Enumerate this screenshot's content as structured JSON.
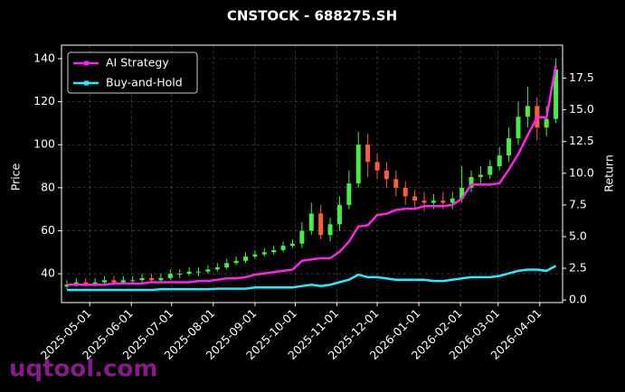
{
  "chart_data": {
    "type": "candlestick",
    "title": "CNSTOCK - 688275.SH",
    "ylabel": "Price",
    "y2label": "Return",
    "watermark": "uqtool.com",
    "grid": true,
    "legend": "upper left",
    "up_color": "#44ee44",
    "down_color": "#ff5a3c",
    "x": [
      "2025-04-14",
      "2025-04-21",
      "2025-04-28",
      "2025-05-05",
      "2025-05-12",
      "2025-05-19",
      "2025-05-26",
      "2025-06-02",
      "2025-06-09",
      "2025-06-16",
      "2025-06-23",
      "2025-06-30",
      "2025-07-07",
      "2025-07-14",
      "2025-07-21",
      "2025-07-28",
      "2025-08-04",
      "2025-08-11",
      "2025-08-18",
      "2025-08-25",
      "2025-09-01",
      "2025-09-08",
      "2025-09-15",
      "2025-09-22",
      "2025-09-29",
      "2025-10-06",
      "2025-10-13",
      "2025-10-20",
      "2025-10-27",
      "2025-11-03",
      "2025-11-10",
      "2025-11-17",
      "2025-11-24",
      "2025-12-01",
      "2025-12-08",
      "2025-12-15",
      "2025-12-22",
      "2025-12-29",
      "2026-01-05",
      "2026-01-12",
      "2026-01-19",
      "2026-01-26",
      "2026-02-02",
      "2026-02-09",
      "2026-02-16",
      "2026-02-23",
      "2026-03-02",
      "2026-03-09",
      "2026-03-16",
      "2026-03-23",
      "2026-03-30",
      "2026-04-06",
      "2026-04-13"
    ],
    "open": [
      34,
      35,
      36,
      35,
      36,
      37,
      36,
      37,
      37,
      38,
      37,
      38,
      40,
      40,
      41,
      41,
      42,
      43,
      45,
      46,
      48,
      49,
      50,
      51,
      53,
      54,
      60,
      68,
      58,
      63,
      72,
      82,
      100,
      92,
      88,
      84,
      80,
      76,
      74,
      73,
      74,
      73,
      75,
      80,
      85,
      86,
      90,
      95,
      103,
      113,
      118,
      108,
      112
    ],
    "high": [
      37,
      38,
      38,
      38,
      39,
      39,
      39,
      39,
      40,
      40,
      40,
      42,
      42,
      43,
      43,
      44,
      45,
      47,
      48,
      50,
      51,
      52,
      53,
      55,
      56,
      64,
      73,
      72,
      66,
      76,
      88,
      106,
      105,
      96,
      92,
      88,
      83,
      79,
      78,
      77,
      78,
      78,
      90,
      88,
      90,
      93,
      99,
      108,
      120,
      127,
      122,
      118,
      140
    ],
    "low": [
      33,
      34,
      34,
      34,
      35,
      35,
      35,
      35,
      36,
      36,
      36,
      37,
      38,
      39,
      39,
      40,
      41,
      42,
      44,
      45,
      47,
      48,
      49,
      50,
      52,
      52,
      58,
      56,
      55,
      60,
      70,
      80,
      85,
      84,
      80,
      76,
      72,
      70,
      69,
      70,
      70,
      70,
      73,
      78,
      82,
      84,
      88,
      92,
      100,
      108,
      102,
      104,
      110
    ],
    "close": [
      35,
      36,
      35,
      36,
      37,
      36,
      37,
      37,
      38,
      37,
      38,
      40,
      40,
      41,
      41,
      42,
      43,
      45,
      46,
      48,
      49,
      50,
      51,
      53,
      54,
      60,
      68,
      58,
      63,
      72,
      82,
      100,
      92,
      88,
      84,
      80,
      76,
      74,
      73,
      74,
      73,
      75,
      80,
      85,
      86,
      90,
      95,
      103,
      113,
      118,
      108,
      112,
      135
    ],
    "series": [
      {
        "name": "AI Strategy",
        "color": "#ff22ee",
        "axis": "y2",
        "values": [
          1.2,
          1.2,
          1.2,
          1.2,
          1.2,
          1.3,
          1.3,
          1.3,
          1.3,
          1.4,
          1.4,
          1.4,
          1.4,
          1.4,
          1.5,
          1.5,
          1.6,
          1.7,
          1.7,
          1.8,
          2.0,
          2.1,
          2.2,
          2.3,
          2.4,
          3.1,
          3.2,
          3.3,
          3.3,
          3.8,
          4.6,
          5.8,
          5.9,
          6.7,
          6.8,
          7.1,
          7.2,
          7.2,
          7.4,
          7.4,
          7.4,
          7.5,
          8.0,
          9.1,
          9.1,
          9.1,
          9.2,
          10.3,
          11.5,
          13.0,
          14.4,
          14.4,
          18.5
        ]
      },
      {
        "name": "Buy-and-Hold",
        "color": "#22eeff",
        "axis": "y2",
        "values": [
          0.8,
          0.8,
          0.8,
          0.8,
          0.8,
          0.8,
          0.8,
          0.8,
          0.8,
          0.8,
          0.85,
          0.85,
          0.85,
          0.85,
          0.85,
          0.85,
          0.9,
          0.9,
          0.9,
          0.9,
          1.0,
          1.0,
          1.0,
          1.0,
          1.0,
          1.1,
          1.2,
          1.1,
          1.2,
          1.4,
          1.6,
          2.0,
          1.8,
          1.8,
          1.7,
          1.6,
          1.6,
          1.6,
          1.6,
          1.5,
          1.5,
          1.6,
          1.7,
          1.8,
          1.8,
          1.8,
          1.9,
          2.1,
          2.3,
          2.4,
          2.4,
          2.3,
          2.7
        ]
      }
    ],
    "xlim": [
      "2025-04-10",
      "2026-04-18"
    ],
    "xticks": [
      "2025-05-01",
      "2025-06-01",
      "2025-07-01",
      "2025-08-01",
      "2025-09-01",
      "2025-10-01",
      "2025-11-01",
      "2025-12-01",
      "2026-01-01",
      "2026-02-01",
      "2026-03-01",
      "2026-04-01"
    ],
    "ylim": [
      26.6,
      146.3
    ],
    "yticks": [
      40,
      60,
      80,
      100,
      120,
      140
    ],
    "y2lim": [
      -0.2,
      20.1
    ],
    "y2ticks": [
      {
        "value": 0,
        "label": "0.0"
      },
      2.5,
      {
        "value": 5,
        "label": "5.0"
      },
      7.5,
      {
        "value": 10,
        "label": "10.0"
      },
      12.5,
      {
        "value": 15,
        "label": "15.0"
      },
      17.5
    ]
  }
}
